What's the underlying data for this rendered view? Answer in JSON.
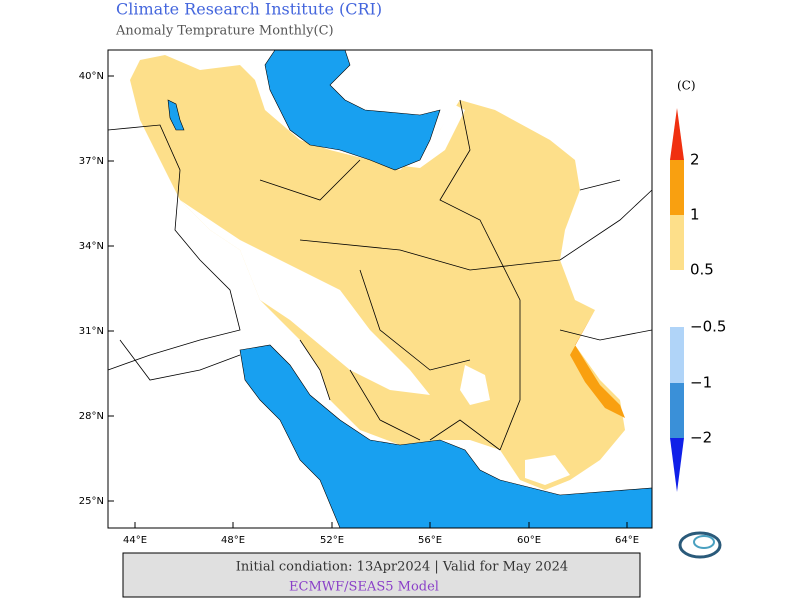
{
  "header": {
    "title": "Climate Research Institute (CRI)",
    "subtitle": "Anomaly Temprature Monthly(C)"
  },
  "map": {
    "lat_labels": [
      "40°N",
      "37°N",
      "34°N",
      "31°N",
      "28°N",
      "25°N"
    ],
    "lon_labels": [
      "44°E",
      "48°E",
      "52°E",
      "56°E",
      "60°E",
      "64°E"
    ]
  },
  "legend": {
    "unit": "(C)",
    "labels": [
      "2",
      "1",
      "0.5",
      "−0.5",
      "−1",
      "−2"
    ]
  },
  "footer": {
    "line1": "Initial condiation: 13Apr2024 | Valid for May 2024",
    "line2": "ECMWF/SEAS5 Model"
  }
}
